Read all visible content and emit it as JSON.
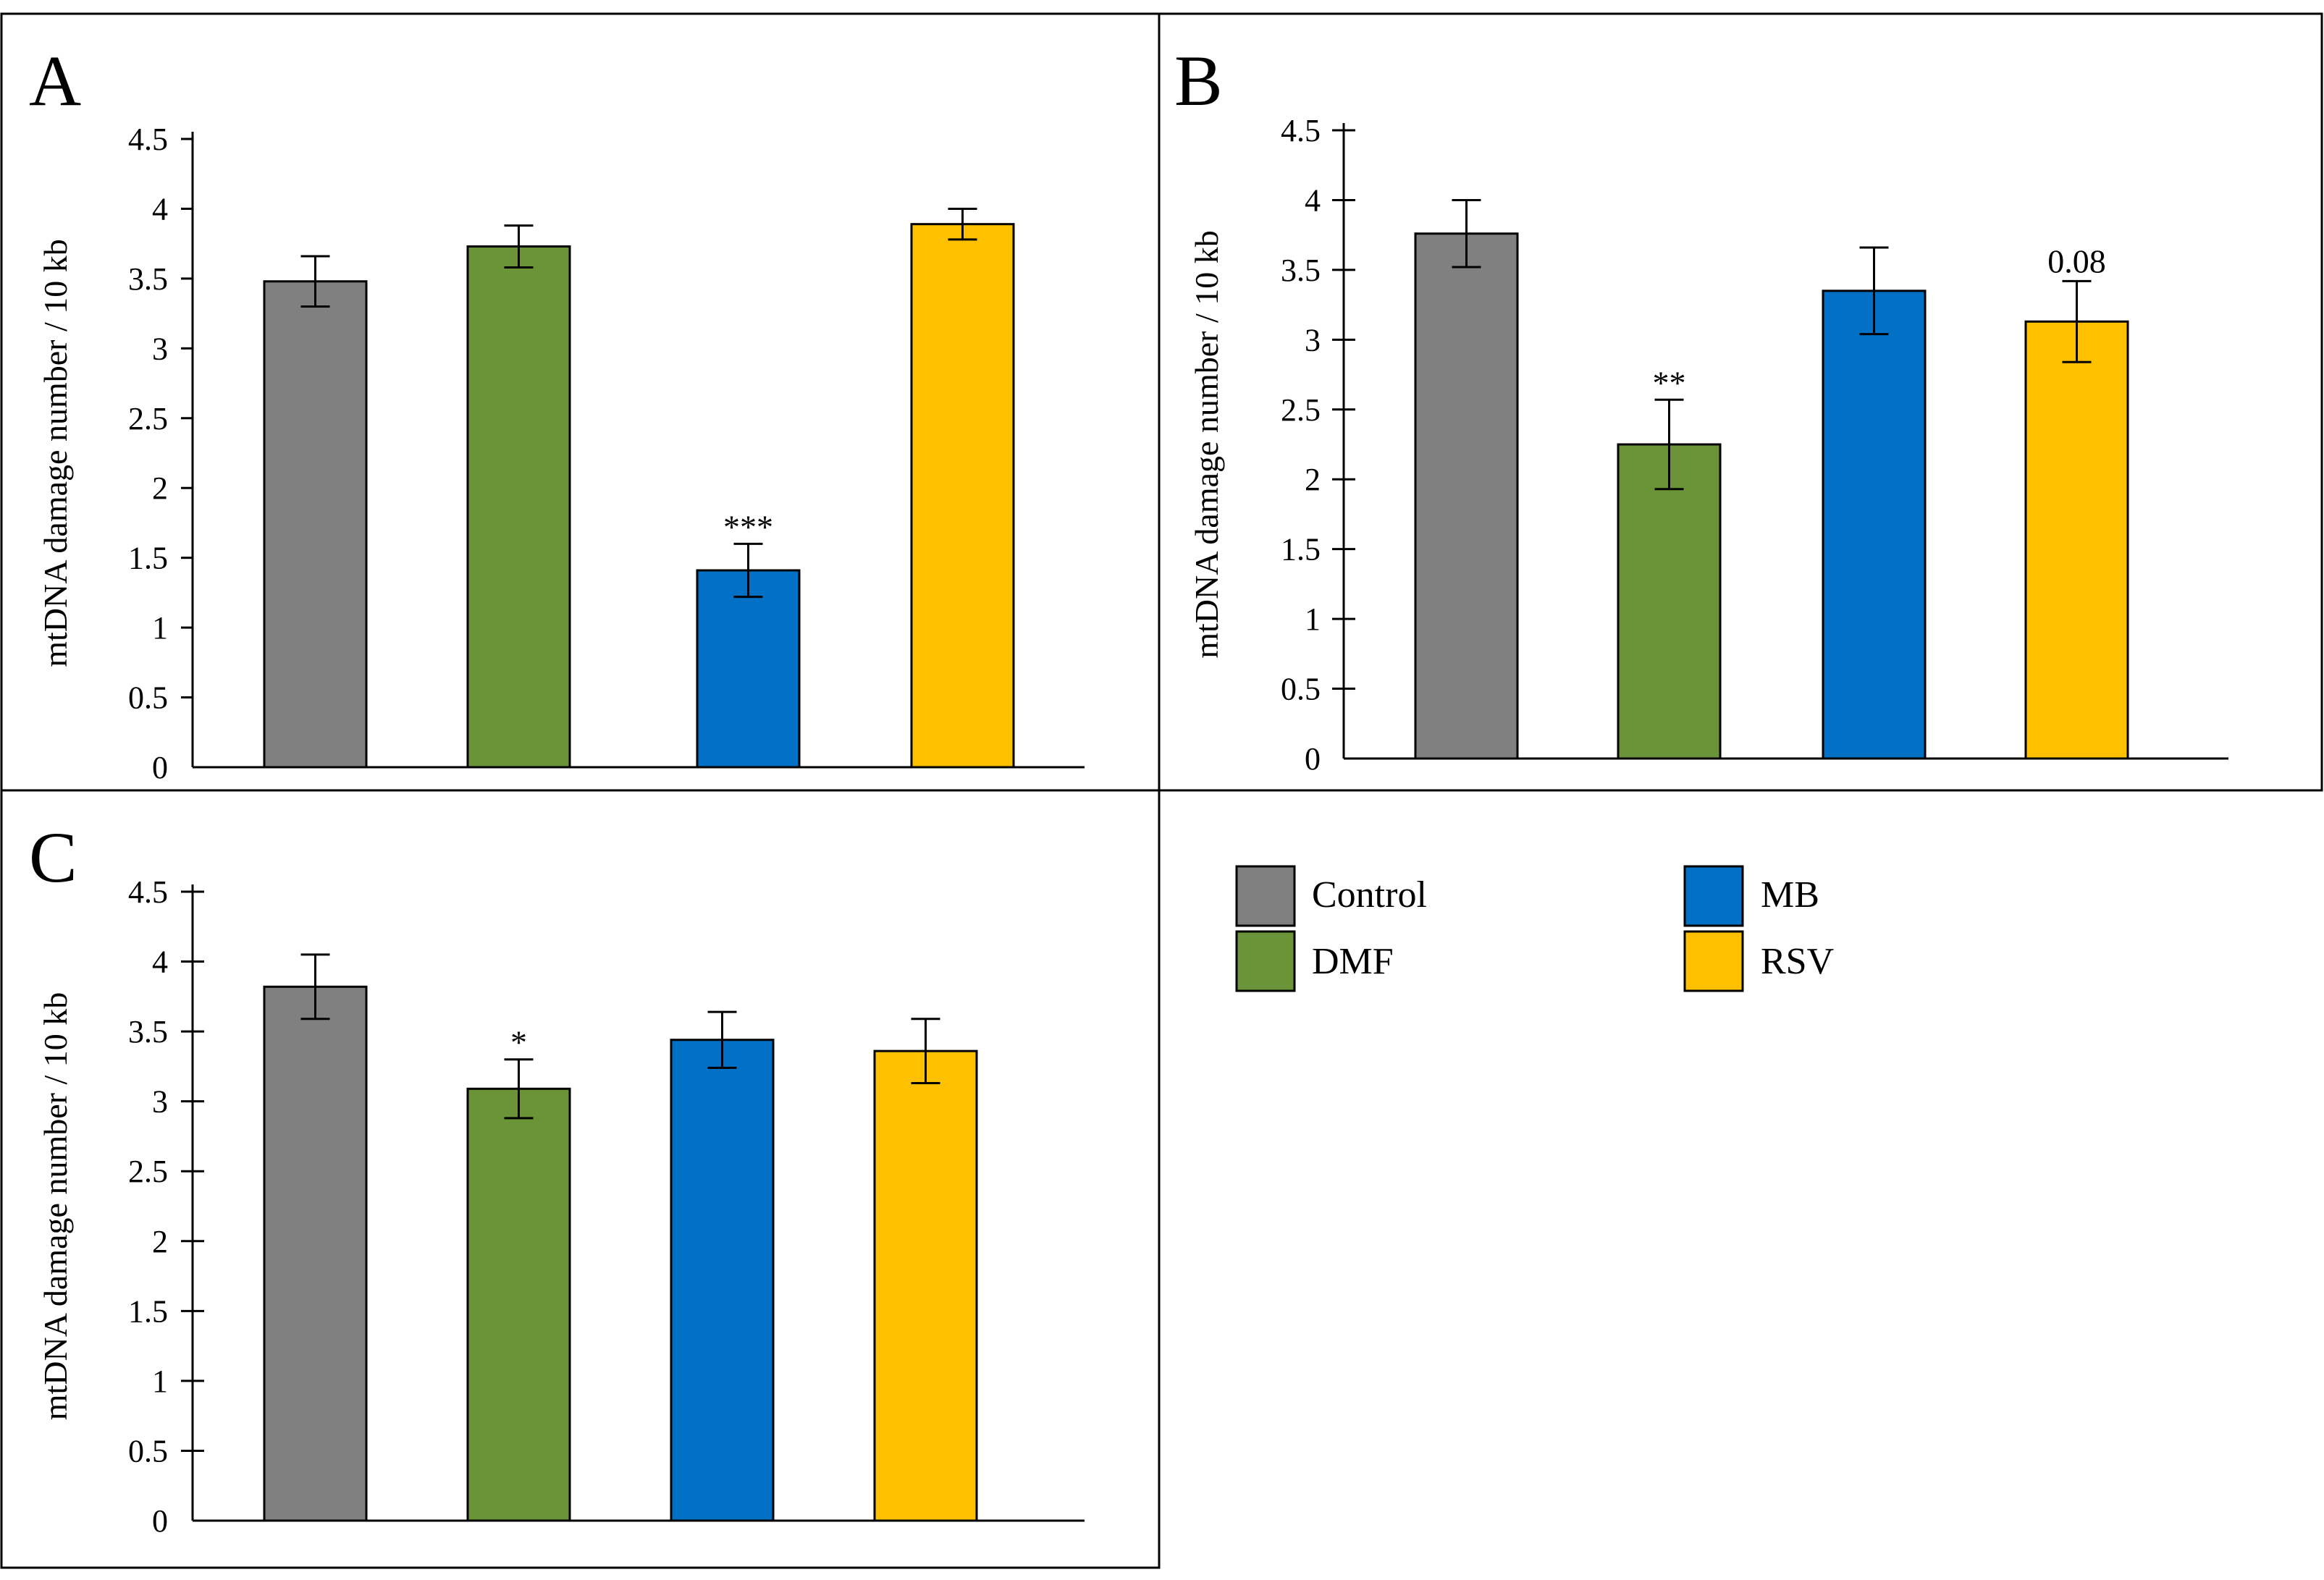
{
  "chart_data": [
    {
      "type": "bar",
      "panel": "A",
      "ylabel": "mtDNA damage number / 10 kb",
      "ylim": [
        0,
        4.5
      ],
      "yticks": [
        "0",
        "0.5",
        "1",
        "1.5",
        "2",
        "2.5",
        "3",
        "3.5",
        "4",
        "4.5"
      ],
      "categories": [
        "Control",
        "DMF",
        "MB",
        "RSV"
      ],
      "values": [
        3.48,
        3.73,
        1.41,
        3.89
      ],
      "errors": [
        0.18,
        0.15,
        0.19,
        0.11
      ],
      "annotations": [
        "",
        "",
        "***",
        ""
      ]
    },
    {
      "type": "bar",
      "panel": "B",
      "ylabel": "mtDNA damage number / 10 kb",
      "ylim": [
        0,
        4.5
      ],
      "yticks": [
        "0",
        "0.5",
        "1",
        "1.5",
        "2",
        "2.5",
        "3",
        "3.5",
        "4",
        "4.5"
      ],
      "categories": [
        "Control",
        "DMF",
        "MB",
        "RSV"
      ],
      "values": [
        3.76,
        2.25,
        3.35,
        3.13
      ],
      "errors": [
        0.24,
        0.32,
        0.31,
        0.29
      ],
      "annotations": [
        "",
        "**",
        "",
        "0.08"
      ]
    },
    {
      "type": "bar",
      "panel": "C",
      "ylabel": "mtDNA damage number / 10 kb",
      "ylim": [
        0,
        4.5
      ],
      "yticks": [
        "0",
        "0.5",
        "1",
        "1.5",
        "2",
        "2.5",
        "3",
        "3.5",
        "4",
        "4.5"
      ],
      "categories": [
        "Control",
        "DMF",
        "MB",
        "RSV"
      ],
      "values": [
        3.82,
        3.09,
        3.44,
        3.36
      ],
      "errors": [
        0.23,
        0.21,
        0.2,
        0.23
      ],
      "annotations": [
        "",
        "*",
        "",
        ""
      ]
    }
  ],
  "legend": {
    "items": [
      {
        "label": "Control",
        "color": "#808080"
      },
      {
        "label": "DMF",
        "color": "#6a9437"
      },
      {
        "label": "MB",
        "color": "#0170c5"
      },
      {
        "label": "RSV",
        "color": "#ffc000"
      }
    ]
  },
  "colors": {
    "Control": "#808080",
    "DMF": "#6a9437",
    "MB": "#0170c5",
    "RSV": "#ffc000"
  }
}
